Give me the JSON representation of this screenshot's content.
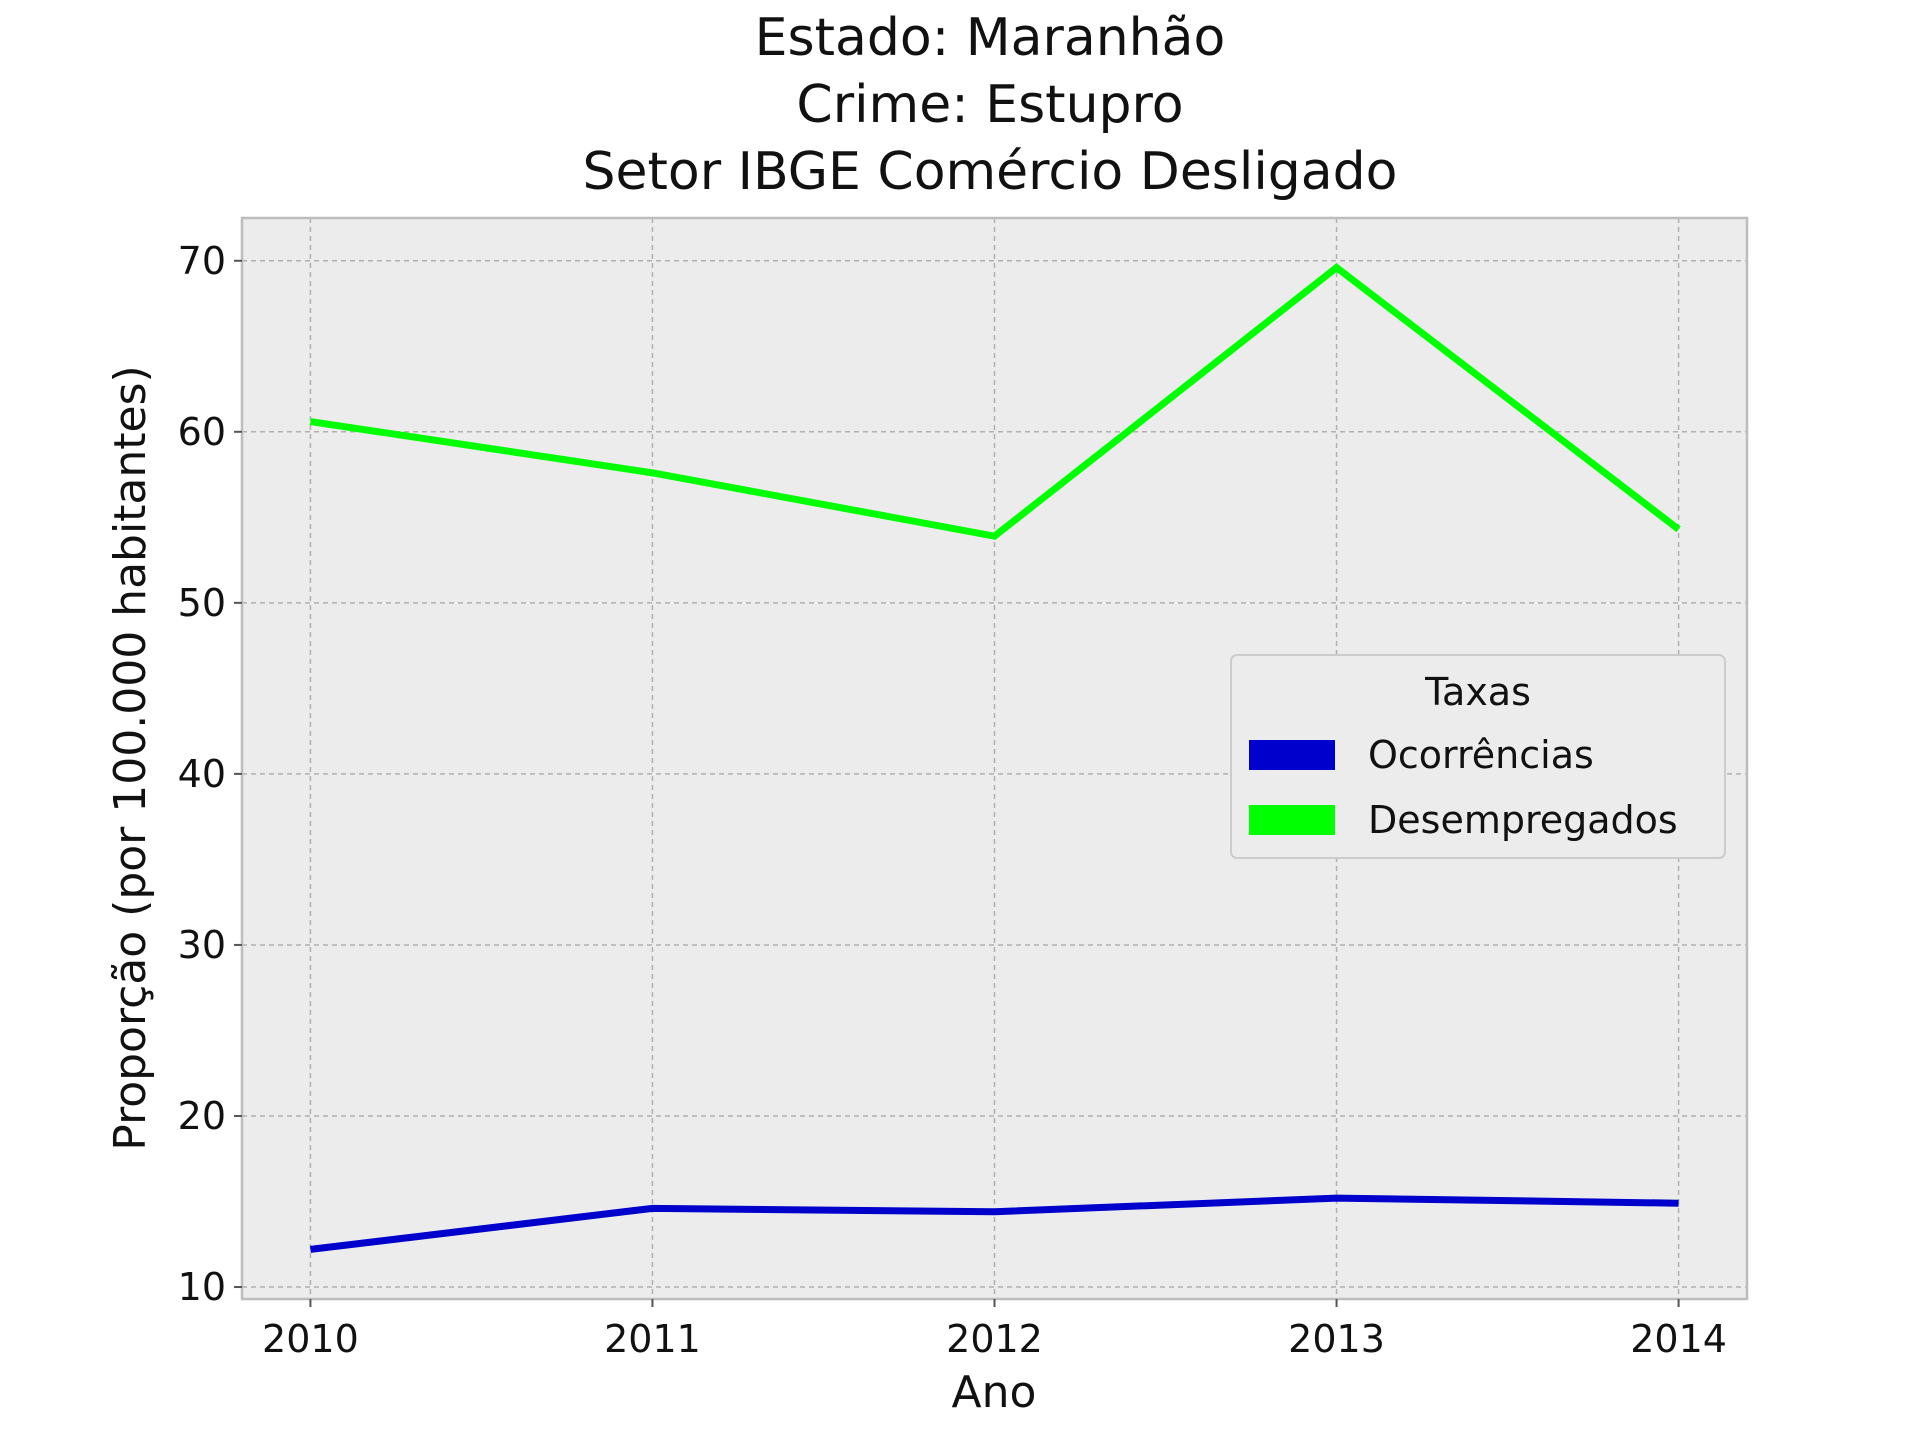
{
  "chart_data": {
    "type": "line",
    "title_lines": [
      "Estado: Maranhão",
      "Crime: Estupro",
      "Setor IBGE  Comércio   Desligado"
    ],
    "xlabel": "Ano",
    "ylabel": "Proporção (por 100.000 habitantes)",
    "x": [
      2010,
      2011,
      2012,
      2013,
      2014
    ],
    "x_tick_labels": [
      "2010",
      "2011",
      "2012",
      "2013",
      "2014"
    ],
    "y_ticks": [
      10,
      20,
      30,
      40,
      50,
      60,
      70
    ],
    "y_tick_labels": [
      "10",
      "20",
      "30",
      "40",
      "50",
      "60",
      "70"
    ],
    "xlim": [
      2009.8,
      2014.2
    ],
    "ylim": [
      9.3,
      72.5
    ],
    "grid": true,
    "legend": {
      "title": "Taxas",
      "position": "center-right"
    },
    "series": [
      {
        "name": "Ocorrências",
        "color": "#0000cc",
        "values": [
          12.2,
          14.6,
          14.4,
          15.2,
          14.9
        ]
      },
      {
        "name": "Desempregados",
        "color": "#00ff00",
        "values": [
          60.6,
          57.6,
          53.9,
          69.6,
          54.3
        ]
      }
    ],
    "background_color": "#ececec",
    "frame_color": "#bdbdbd"
  }
}
